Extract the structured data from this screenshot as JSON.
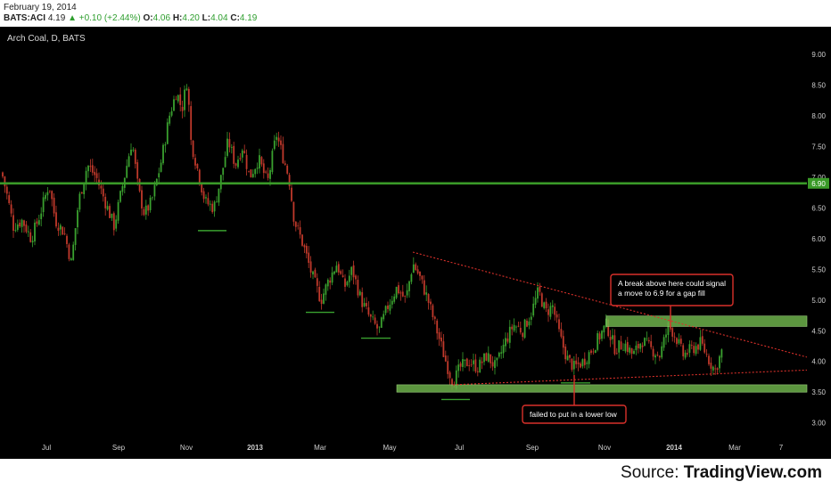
{
  "header": {
    "date": "February 19, 2014",
    "symbol": "BATS:ACI",
    "last": "4.19",
    "change": "+0.10 (+2.44%)",
    "open_label": "O:",
    "open": "4.06",
    "high_label": "H:",
    "high": "4.20",
    "low_label": "L:",
    "low": "4.04",
    "close_label": "C:",
    "close": "4.19"
  },
  "source": {
    "prefix": "Source: ",
    "name": "TradingView.com"
  },
  "chart_data": {
    "type": "candlestick",
    "title": "Arch Coal, D, BATS",
    "ylim": [
      2.85,
      9.45
    ],
    "y_ticks": [
      "3.00",
      "3.50",
      "4.00",
      "4.50",
      "5.00",
      "5.50",
      "6.00",
      "6.50",
      "7.00",
      "7.50",
      "8.00",
      "8.50",
      "9.00"
    ],
    "x_ticks": [
      "Jul",
      "Sep",
      "Nov",
      "2013",
      "Mar",
      "May",
      "Jul",
      "Sep",
      "Nov",
      "2014",
      "Mar",
      "7"
    ],
    "price_path": [
      [
        0,
        7.2
      ],
      [
        8,
        6.7
      ],
      [
        15,
        6.2
      ],
      [
        25,
        6.3
      ],
      [
        35,
        6.0
      ],
      [
        45,
        6.4
      ],
      [
        55,
        6.9
      ],
      [
        62,
        6.3
      ],
      [
        72,
        6.1
      ],
      [
        80,
        5.6
      ],
      [
        88,
        6.6
      ],
      [
        98,
        7.2
      ],
      [
        108,
        7.0
      ],
      [
        118,
        6.6
      ],
      [
        128,
        6.2
      ],
      [
        138,
        6.9
      ],
      [
        148,
        7.6
      ],
      [
        155,
        6.8
      ],
      [
        162,
        6.4
      ],
      [
        170,
        6.6
      ],
      [
        180,
        7.2
      ],
      [
        190,
        8.0
      ],
      [
        198,
        8.4
      ],
      [
        204,
        8.1
      ],
      [
        210,
        8.6
      ],
      [
        214,
        7.6
      ],
      [
        222,
        7.1
      ],
      [
        230,
        6.6
      ],
      [
        240,
        6.5
      ],
      [
        248,
        7.0
      ],
      [
        256,
        7.6
      ],
      [
        264,
        7.2
      ],
      [
        272,
        7.5
      ],
      [
        280,
        7.0
      ],
      [
        290,
        7.3
      ],
      [
        300,
        6.9
      ],
      [
        310,
        7.7
      ],
      [
        318,
        7.3
      ],
      [
        324,
        7.0
      ],
      [
        330,
        6.3
      ],
      [
        340,
        5.9
      ],
      [
        350,
        5.4
      ],
      [
        360,
        5.0
      ],
      [
        368,
        5.3
      ],
      [
        378,
        5.6
      ],
      [
        386,
        5.2
      ],
      [
        395,
        5.5
      ],
      [
        405,
        5.0
      ],
      [
        415,
        4.7
      ],
      [
        425,
        4.5
      ],
      [
        435,
        4.9
      ],
      [
        445,
        5.2
      ],
      [
        455,
        5.0
      ],
      [
        463,
        5.6
      ],
      [
        470,
        5.4
      ],
      [
        480,
        5.0
      ],
      [
        490,
        4.5
      ],
      [
        500,
        4.0
      ],
      [
        508,
        3.65
      ],
      [
        516,
        3.9
      ],
      [
        526,
        4.0
      ],
      [
        536,
        3.9
      ],
      [
        546,
        4.1
      ],
      [
        556,
        3.9
      ],
      [
        566,
        4.3
      ],
      [
        576,
        4.6
      ],
      [
        586,
        4.5
      ],
      [
        596,
        4.8
      ],
      [
        604,
        5.15
      ],
      [
        612,
        4.8
      ],
      [
        620,
        4.9
      ],
      [
        628,
        4.4
      ],
      [
        636,
        4.05
      ],
      [
        644,
        3.9
      ],
      [
        654,
        4.0
      ],
      [
        664,
        4.2
      ],
      [
        672,
        4.4
      ],
      [
        680,
        4.6
      ],
      [
        690,
        4.2
      ],
      [
        700,
        4.3
      ],
      [
        710,
        4.1
      ],
      [
        720,
        4.35
      ],
      [
        730,
        4.2
      ],
      [
        740,
        4.1
      ],
      [
        750,
        4.6
      ],
      [
        758,
        4.4
      ],
      [
        766,
        4.1
      ],
      [
        776,
        4.2
      ],
      [
        786,
        4.3
      ],
      [
        796,
        4.0
      ],
      [
        802,
        3.85
      ],
      [
        810,
        4.19
      ]
    ],
    "horizontal_lines": [
      {
        "value": 6.9,
        "label": "6.90",
        "color": "#3a9a28"
      }
    ],
    "support_zone": {
      "y_range": [
        3.5,
        3.62
      ],
      "x_range": [
        445,
        905
      ],
      "color": "#6cb04a"
    },
    "resistance_zone": {
      "y_range": [
        4.57,
        4.74
      ],
      "x_range": [
        680,
        905
      ],
      "color": "#6cb04a"
    },
    "trendlines": [
      {
        "from": [
          463,
          5.78
        ],
        "to": [
          905,
          4.07
        ],
        "color": "#d9302a",
        "style": "dotted"
      },
      {
        "from": [
          508,
          3.62
        ],
        "to": [
          905,
          3.86
        ],
        "color": "#d9302a",
        "style": "dotted"
      }
    ],
    "support_markers": [
      {
        "x": [
          222,
          254
        ],
        "y": 6.13
      },
      {
        "x": [
          343,
          375
        ],
        "y": 4.8
      },
      {
        "x": [
          405,
          438
        ],
        "y": 4.38
      },
      {
        "x": [
          495,
          527
        ],
        "y": 3.38
      },
      {
        "x": [
          629,
          662
        ],
        "y": 3.65
      }
    ],
    "annotations": [
      {
        "text": [
          "A break above here could signal",
          "a move to 6.9 for a gap fill"
        ],
        "pointer": [
          752,
          4.52
        ]
      },
      {
        "text": [
          "failed to put in a lower low"
        ],
        "pointer": [
          644,
          3.78
        ]
      }
    ],
    "colors": {
      "up": "#3aa12f",
      "down": "#c0392b",
      "background": "#000000",
      "axis_text": "#cfcfcf"
    }
  }
}
